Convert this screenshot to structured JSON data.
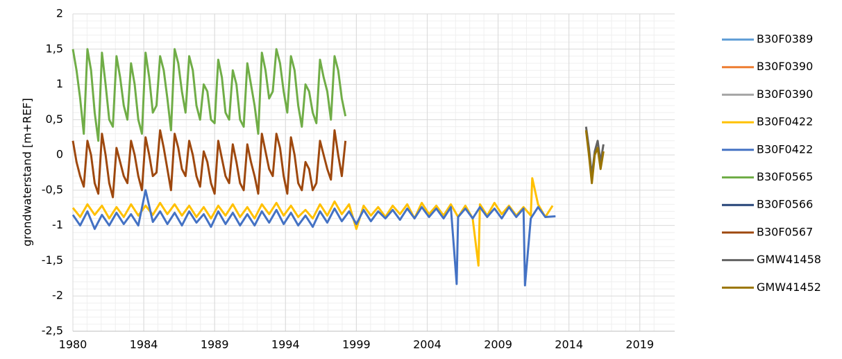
{
  "chart_data": {
    "type": "line",
    "y_label": "grondwaterstand [m+REF]",
    "xlim": [
      1980,
      2021.4
    ],
    "xticks": [
      {
        "value": 1980,
        "label": "1980"
      },
      {
        "value": 1984.875,
        "label": "1984"
      },
      {
        "value": 1989.75,
        "label": "1989"
      },
      {
        "value": 1994.625,
        "label": "1994"
      },
      {
        "value": 1999.5,
        "label": "1999"
      },
      {
        "value": 2004.375,
        "label": "2004"
      },
      {
        "value": 2009.25,
        "label": "2009"
      },
      {
        "value": 2014.125,
        "label": "2014"
      },
      {
        "value": 2019,
        "label": "2019"
      }
    ],
    "ylim": [
      -2.5,
      2
    ],
    "yticks": [
      {
        "value": -2.5,
        "label": "-2,5"
      },
      -2,
      {
        "value": -1.5,
        "label": "-1,5"
      },
      -1,
      {
        "value": -0.5,
        "label": "-0,5"
      },
      0,
      {
        "value": 0.5,
        "label": "0,5"
      },
      1,
      {
        "value": 1.5,
        "label": "1,5"
      },
      2
    ],
    "grid": true,
    "minor_grid": true,
    "legend": "right",
    "series": [
      {
        "name": "B30F0389",
        "color": "#5b9bd5",
        "x": [],
        "values": []
      },
      {
        "name": "B30F0390",
        "color": "#ed7d31",
        "x": [],
        "values": []
      },
      {
        "name": "B30F0390",
        "color": "#a5a5a5",
        "x": [],
        "values": []
      },
      {
        "name": "B30F0422",
        "color": "#ffc000",
        "x": [
          1980,
          1980.5,
          1981,
          1981.5,
          1982,
          1982.5,
          1983,
          1983.5,
          1984,
          1984.5,
          1985,
          1985.5,
          1986,
          1986.5,
          1987,
          1987.5,
          1988,
          1988.5,
          1989,
          1989.5,
          1990,
          1990.5,
          1991,
          1991.5,
          1992,
          1992.5,
          1993,
          1993.5,
          1994,
          1994.5,
          1995,
          1995.5,
          1996,
          1996.5,
          1997,
          1997.5,
          1998,
          1998.5,
          1999,
          1999.5,
          2000,
          2000.5,
          2001,
          2001.5,
          2002,
          2002.5,
          2003,
          2003.5,
          2004,
          2004.5,
          2005,
          2005.5,
          2006,
          2006.5,
          2007,
          2007.5,
          2007.9,
          2008,
          2008.5,
          2009,
          2009.5,
          2010,
          2010.5,
          2011,
          2011.5,
          2011.6,
          2012,
          2012.5,
          2013
        ],
        "values": [
          -0.75,
          -0.88,
          -0.7,
          -0.85,
          -0.72,
          -0.9,
          -0.74,
          -0.88,
          -0.7,
          -0.86,
          -0.72,
          -0.85,
          -0.68,
          -0.84,
          -0.7,
          -0.86,
          -0.72,
          -0.88,
          -0.74,
          -0.9,
          -0.72,
          -0.86,
          -0.7,
          -0.88,
          -0.74,
          -0.9,
          -0.7,
          -0.84,
          -0.68,
          -0.86,
          -0.72,
          -0.88,
          -0.78,
          -0.9,
          -0.7,
          -0.86,
          -0.66,
          -0.84,
          -0.7,
          -1.05,
          -0.72,
          -0.86,
          -0.74,
          -0.88,
          -0.72,
          -0.84,
          -0.7,
          -0.9,
          -0.68,
          -0.84,
          -0.72,
          -0.86,
          -0.7,
          -0.88,
          -0.72,
          -0.9,
          -1.57,
          -0.7,
          -0.86,
          -0.68,
          -0.84,
          -0.72,
          -0.86,
          -0.74,
          -0.86,
          -0.33,
          -0.7,
          -0.88,
          -0.72
        ]
      },
      {
        "name": "B30F0422",
        "color": "#4472c4",
        "x": [
          1980,
          1980.5,
          1981,
          1981.5,
          1982,
          1982.5,
          1983,
          1983.5,
          1984,
          1984.5,
          1985,
          1985.5,
          1986,
          1986.5,
          1987,
          1987.5,
          1988,
          1988.5,
          1989,
          1989.5,
          1990,
          1990.5,
          1991,
          1991.5,
          1992,
          1992.5,
          1993,
          1993.5,
          1994,
          1994.5,
          1995,
          1995.5,
          1996,
          1996.5,
          1997,
          1997.5,
          1998,
          1998.5,
          1999,
          1999.5,
          2000,
          2000.5,
          2001,
          2001.5,
          2002,
          2002.5,
          2003,
          2003.5,
          2004,
          2004.5,
          2005,
          2005.5,
          2006,
          2006.4,
          2006.5,
          2007,
          2007.5,
          2008,
          2008.5,
          2009,
          2009.5,
          2010,
          2010.5,
          2011,
          2011.1,
          2011.5,
          2012,
          2012.5,
          2013.2
        ],
        "values": [
          -0.85,
          -1.0,
          -0.8,
          -1.05,
          -0.85,
          -1.0,
          -0.82,
          -0.98,
          -0.84,
          -1.0,
          -0.5,
          -0.95,
          -0.8,
          -0.98,
          -0.82,
          -1.0,
          -0.8,
          -0.96,
          -0.84,
          -1.02,
          -0.8,
          -0.98,
          -0.82,
          -1.0,
          -0.84,
          -1.0,
          -0.8,
          -0.96,
          -0.78,
          -0.98,
          -0.82,
          -1.0,
          -0.86,
          -1.02,
          -0.8,
          -0.96,
          -0.76,
          -0.94,
          -0.8,
          -0.98,
          -0.78,
          -0.94,
          -0.8,
          -0.9,
          -0.78,
          -0.92,
          -0.76,
          -0.9,
          -0.74,
          -0.88,
          -0.76,
          -0.9,
          -0.74,
          -1.83,
          -0.88,
          -0.76,
          -0.9,
          -0.74,
          -0.88,
          -0.76,
          -0.9,
          -0.74,
          -0.88,
          -0.76,
          -1.85,
          -0.9,
          -0.74,
          -0.88,
          -0.87
        ]
      },
      {
        "name": "B30F0565",
        "color": "#70ad47",
        "x": [
          1980,
          1980.25,
          1980.5,
          1980.75,
          1981,
          1981.25,
          1981.5,
          1981.75,
          1982,
          1982.25,
          1982.5,
          1982.75,
          1983,
          1983.25,
          1983.5,
          1983.75,
          1984,
          1984.25,
          1984.5,
          1984.75,
          1985,
          1985.25,
          1985.5,
          1985.75,
          1986,
          1986.25,
          1986.5,
          1986.75,
          1987,
          1987.25,
          1987.5,
          1987.75,
          1988,
          1988.25,
          1988.5,
          1988.75,
          1989,
          1989.25,
          1989.5,
          1989.75,
          1990,
          1990.25,
          1990.5,
          1990.75,
          1991,
          1991.25,
          1991.5,
          1991.75,
          1992,
          1992.25,
          1992.5,
          1992.75,
          1993,
          1993.25,
          1993.5,
          1993.75,
          1994,
          1994.25,
          1994.5,
          1994.75,
          1995,
          1995.25,
          1995.5,
          1995.75,
          1996,
          1996.25,
          1996.5,
          1996.75,
          1997,
          1997.25,
          1997.5,
          1997.75,
          1998,
          1998.25,
          1998.5,
          1998.75
        ],
        "values": [
          1.5,
          1.2,
          0.8,
          0.3,
          1.5,
          1.2,
          0.6,
          0.2,
          1.45,
          1.0,
          0.5,
          0.4,
          1.4,
          1.1,
          0.7,
          0.5,
          1.3,
          1.0,
          0.5,
          0.3,
          1.45,
          1.1,
          0.6,
          0.7,
          1.4,
          1.2,
          0.8,
          0.35,
          1.5,
          1.3,
          0.9,
          0.6,
          1.4,
          1.2,
          0.7,
          0.5,
          1.0,
          0.9,
          0.5,
          0.45,
          1.35,
          1.1,
          0.6,
          0.5,
          1.2,
          1.0,
          0.5,
          0.4,
          1.3,
          1.0,
          0.7,
          0.3,
          1.45,
          1.2,
          0.8,
          0.9,
          1.5,
          1.3,
          0.9,
          0.6,
          1.4,
          1.2,
          0.7,
          0.4,
          1.0,
          0.9,
          0.6,
          0.45,
          1.35,
          1.1,
          0.9,
          0.5,
          1.4,
          1.2,
          0.8,
          0.55
        ]
      },
      {
        "name": "B30F0566",
        "color": "#264478",
        "x": [],
        "values": []
      },
      {
        "name": "B30F0567",
        "color": "#9e480e",
        "x": [
          1980,
          1980.25,
          1980.5,
          1980.75,
          1981,
          1981.25,
          1981.5,
          1981.75,
          1982,
          1982.25,
          1982.5,
          1982.75,
          1983,
          1983.25,
          1983.5,
          1983.75,
          1984,
          1984.25,
          1984.5,
          1984.75,
          1985,
          1985.25,
          1985.5,
          1985.75,
          1986,
          1986.25,
          1986.5,
          1986.75,
          1987,
          1987.25,
          1987.5,
          1987.75,
          1988,
          1988.25,
          1988.5,
          1988.75,
          1989,
          1989.25,
          1989.5,
          1989.75,
          1990,
          1990.25,
          1990.5,
          1990.75,
          1991,
          1991.25,
          1991.5,
          1991.75,
          1992,
          1992.25,
          1992.5,
          1992.75,
          1993,
          1993.25,
          1993.5,
          1993.75,
          1994,
          1994.25,
          1994.5,
          1994.75,
          1995,
          1995.25,
          1995.5,
          1995.75,
          1996,
          1996.25,
          1996.5,
          1996.75,
          1997,
          1997.25,
          1997.5,
          1997.75,
          1998,
          1998.25,
          1998.5,
          1998.75
        ],
        "values": [
          0.2,
          -0.1,
          -0.3,
          -0.45,
          0.2,
          0.0,
          -0.4,
          -0.55,
          0.3,
          0.0,
          -0.4,
          -0.6,
          0.1,
          -0.1,
          -0.3,
          -0.4,
          0.2,
          0.0,
          -0.3,
          -0.5,
          0.25,
          0.0,
          -0.3,
          -0.25,
          0.35,
          0.1,
          -0.2,
          -0.5,
          0.3,
          0.1,
          -0.2,
          -0.3,
          0.2,
          0.0,
          -0.3,
          -0.45,
          0.05,
          -0.1,
          -0.4,
          -0.55,
          0.2,
          -0.05,
          -0.3,
          -0.4,
          0.15,
          -0.1,
          -0.4,
          -0.5,
          0.15,
          -0.1,
          -0.3,
          -0.55,
          0.3,
          0.05,
          -0.2,
          -0.3,
          0.3,
          0.1,
          -0.3,
          -0.55,
          0.25,
          0.0,
          -0.4,
          -0.5,
          -0.1,
          -0.2,
          -0.5,
          -0.4,
          0.2,
          0.0,
          -0.2,
          -0.35,
          0.35,
          0.0,
          -0.3,
          0.2
        ]
      },
      {
        "name": "GMW41458",
        "color": "#636363",
        "x": [
          2015.3,
          2015.5,
          2015.7,
          2015.9,
          2016.1,
          2016.3,
          2016.5
        ],
        "values": [
          0.4,
          0.1,
          -0.3,
          0.05,
          0.2,
          -0.1,
          0.15
        ]
      },
      {
        "name": "GMW41452",
        "color": "#997300",
        "x": [
          2015.3,
          2015.5,
          2015.7,
          2015.9,
          2016.1,
          2016.3,
          2016.5
        ],
        "values": [
          0.35,
          0.0,
          -0.4,
          0.0,
          0.1,
          -0.2,
          0.05
        ]
      }
    ]
  }
}
